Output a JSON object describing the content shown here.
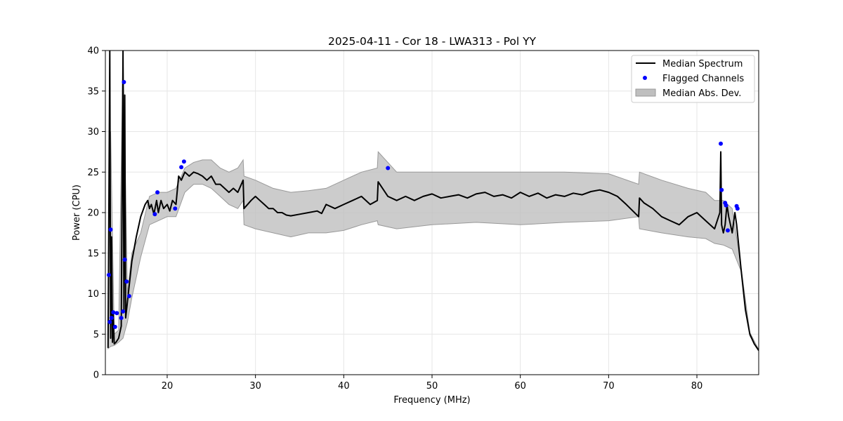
{
  "chart_data": {
    "type": "line",
    "title": "2025-04-11 - Cor 18 - LWA313 - Pol YY",
    "xlabel": "Frequency (MHz)",
    "ylabel": "Power (CPU)",
    "xlim": [
      13,
      87
    ],
    "ylim": [
      0,
      40
    ],
    "xticks": [
      20,
      30,
      40,
      50,
      60,
      70,
      80
    ],
    "yticks": [
      0,
      5,
      10,
      15,
      20,
      25,
      30,
      35,
      40
    ],
    "grid": true,
    "legend_position": "top-right",
    "legend": [
      {
        "label": "Median Spectrum",
        "kind": "line",
        "color": "#000000"
      },
      {
        "label": "Flagged Channels",
        "kind": "marker",
        "color": "#0000ff"
      },
      {
        "label": "Median Abs. Dev.",
        "kind": "patch",
        "color": "#bfbfbf"
      }
    ],
    "series": [
      {
        "name": "Median Spectrum",
        "kind": "line",
        "color": "#000000",
        "x": [
          13.3,
          13.5,
          13.6,
          13.7,
          13.8,
          13.9,
          14.0,
          14.2,
          14.5,
          14.8,
          15.0,
          15.1,
          15.2,
          15.3,
          15.5,
          15.8,
          16.0,
          16.5,
          17.0,
          17.5,
          17.8,
          18.0,
          18.2,
          18.5,
          18.8,
          19.0,
          19.3,
          19.6,
          20.0,
          20.3,
          20.6,
          21.0,
          21.3,
          21.6,
          22.0,
          22.5,
          23.0,
          23.5,
          24.0,
          24.5,
          25.0,
          25.5,
          26.0,
          26.5,
          27.0,
          27.5,
          28.0,
          28.6,
          28.7,
          29.5,
          30.0,
          30.5,
          31.0,
          31.5,
          32.0,
          32.5,
          33.0,
          33.5,
          34.0,
          35.0,
          36.0,
          37.0,
          37.5,
          38.0,
          39.0,
          40.0,
          41.0,
          42.0,
          43.0,
          43.8,
          43.9,
          45.0,
          46.0,
          47.0,
          48.0,
          49.0,
          50.0,
          51.0,
          52.0,
          53.0,
          54.0,
          55.0,
          56.0,
          57.0,
          58.0,
          59.0,
          60.0,
          61.0,
          62.0,
          63.0,
          64.0,
          65.0,
          66.0,
          67.0,
          68.0,
          69.0,
          70.0,
          71.0,
          72.0,
          73.4,
          73.5,
          74.0,
          75.0,
          76.0,
          77.0,
          78.0,
          79.0,
          80.0,
          81.0,
          82.0,
          82.6,
          82.7,
          82.8,
          83.0,
          83.2,
          83.4,
          83.6,
          83.8,
          84.0,
          84.3,
          84.5,
          85.0,
          85.5,
          86.0,
          86.5,
          87.0
        ],
        "y": [
          3.3,
          40,
          4.5,
          17,
          4,
          7.5,
          3.8,
          4,
          4.5,
          6,
          40,
          8,
          34.5,
          7,
          9,
          12,
          14,
          17,
          19.5,
          21,
          21.5,
          20.5,
          21,
          19.8,
          21.5,
          20,
          21.5,
          20.5,
          21,
          20.2,
          21.5,
          21,
          24.5,
          24,
          25,
          24.5,
          25,
          24.8,
          24.5,
          24,
          24.5,
          23.5,
          23.5,
          23,
          22.5,
          23,
          22.5,
          24,
          20.5,
          21.5,
          22,
          21.5,
          21,
          20.5,
          20.5,
          20,
          20,
          19.7,
          19.6,
          19.8,
          20,
          20.2,
          19.9,
          21,
          20.5,
          21,
          21.5,
          22,
          21,
          21.5,
          23.8,
          22,
          21.5,
          22,
          21.5,
          22,
          22.3,
          21.8,
          22,
          22.2,
          21.8,
          22.3,
          22.5,
          22,
          22.2,
          21.8,
          22.5,
          22,
          22.4,
          21.8,
          22.2,
          22,
          22.4,
          22.2,
          22.6,
          22.8,
          22.5,
          22,
          21,
          19.5,
          21.8,
          21.2,
          20.5,
          19.5,
          19,
          18.5,
          19.5,
          20,
          19,
          18,
          20,
          27.5,
          18.5,
          17.5,
          18.5,
          21,
          19.5,
          18.5,
          17.5,
          20,
          18.5,
          13,
          8,
          5,
          3.8,
          3
        ]
      },
      {
        "name": "Flagged Channels",
        "kind": "scatter",
        "color": "#0000ff",
        "x": [
          13.4,
          13.6,
          13.5,
          13.7,
          13.9,
          14.1,
          14.3,
          14.8,
          15.0,
          15.1,
          15.2,
          15.4,
          15.7,
          18.6,
          18.9,
          20.9,
          21.6,
          21.9,
          45.0,
          82.7,
          82.8,
          83.2,
          83.3,
          83.5,
          84.5,
          84.6
        ],
        "y": [
          12.3,
          17.9,
          6.5,
          7.0,
          7.7,
          5.9,
          7.6,
          7.0,
          7.8,
          36.1,
          14.2,
          11.5,
          9.7,
          19.8,
          22.5,
          20.5,
          25.6,
          26.3,
          25.5,
          28.5,
          22.8,
          21.2,
          20.9,
          17.8,
          20.8,
          20.5
        ]
      },
      {
        "name": "Median Abs. Dev.",
        "kind": "band",
        "color": "#bfbfbf",
        "x": [
          13.3,
          13.6,
          14.0,
          14.5,
          15.0,
          15.5,
          16.0,
          17.0,
          18.0,
          19.0,
          20.0,
          21.0,
          22.0,
          23.0,
          24.0,
          25.0,
          26.0,
          27.0,
          28.0,
          28.6,
          28.7,
          30.0,
          32.0,
          34.0,
          36.0,
          38.0,
          40.0,
          42.0,
          43.8,
          43.9,
          46.0,
          50.0,
          55.0,
          60.0,
          65.0,
          70.0,
          73.4,
          73.5,
          76.0,
          79.0,
          81.0,
          82.0,
          83.0,
          84.0,
          85.0,
          86.0,
          87.0
        ],
        "upper": [
          5,
          30,
          5,
          5.5,
          40,
          10,
          15,
          17.5,
          22,
          22.5,
          22.5,
          23,
          25.5,
          26.2,
          26.5,
          26.5,
          25.5,
          25,
          25.5,
          26.5,
          24.5,
          24,
          23,
          22.5,
          22.7,
          23,
          24,
          25,
          25.5,
          27.5,
          25,
          25,
          25,
          25,
          25,
          24.8,
          23.5,
          25,
          24,
          23,
          22.5,
          21.5,
          21.5,
          20.5,
          13.2,
          5.2,
          3.1
        ],
        "lower": [
          3.2,
          3.5,
          3.6,
          4,
          4.5,
          6.5,
          9.5,
          14.5,
          18.5,
          19,
          19.5,
          19.5,
          22.5,
          23.5,
          23.5,
          23,
          22,
          21,
          20.5,
          21.5,
          18.5,
          18,
          17.5,
          17,
          17.5,
          17.5,
          17.8,
          18.5,
          19,
          18.5,
          18,
          18.5,
          18.8,
          18.5,
          18.8,
          19,
          19.5,
          18,
          17.5,
          17,
          16.8,
          16.2,
          16,
          15.5,
          12.8,
          4.8,
          2.9
        ]
      }
    ]
  }
}
